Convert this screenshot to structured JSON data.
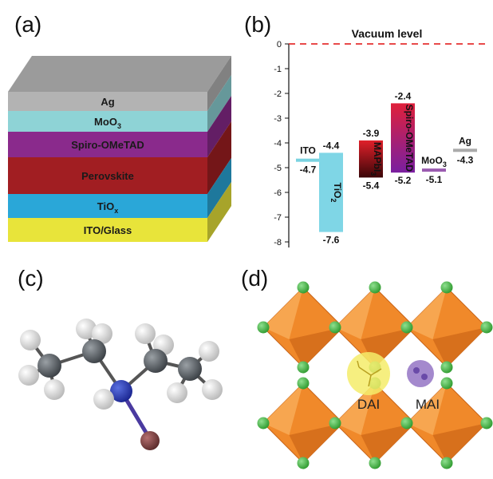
{
  "panels": {
    "a": "(a)",
    "b": "(b)",
    "c": "(c)",
    "d": "(d)"
  },
  "stack": {
    "layers": [
      {
        "name": "Ag",
        "sub": "",
        "color": "#b3b3b3"
      },
      {
        "name": "MoO",
        "sub": "3",
        "color": "#8ed3d6"
      },
      {
        "name": "Spiro-OMeTAD",
        "sub": "",
        "color": "#8a2a8c"
      },
      {
        "name": "Perovskite",
        "sub": "",
        "color": "#a11e22"
      },
      {
        "name": "TiO",
        "sub": "x",
        "color": "#2aa7d8"
      },
      {
        "name": "ITO/Glass",
        "sub": "",
        "color": "#e8e43a"
      }
    ]
  },
  "chart_data": {
    "type": "bar",
    "title": "Vacuum level",
    "ylim": [
      -8.3,
      0.3
    ],
    "yticks": [
      0,
      -1,
      -2,
      -3,
      -4,
      -5,
      -6,
      -7,
      -8
    ],
    "vacuum_level": 0,
    "levels": [
      {
        "name": "ITO",
        "sub": "",
        "label_orientation": "horizontal",
        "value": -4.7,
        "value_label": "-4.7",
        "color": "#7ad3e0"
      },
      {
        "name": "TiO",
        "sub": "2",
        "label_orientation": "vertical",
        "top": -4.4,
        "bottom": -7.6,
        "top_label": "-4.4",
        "bottom_label": "-7.6",
        "color": "#7fd6e6"
      },
      {
        "name": "MAPbI",
        "sub": "3",
        "label_orientation": "vertical",
        "top": -3.9,
        "bottom": -5.4,
        "top_label": "-3.9",
        "bottom_label": "-5.4",
        "color_top": "#e0202a",
        "color_bottom": "#3a0608"
      },
      {
        "name": "Spiro-OMeTAD",
        "sub": "",
        "label_orientation": "vertical",
        "top": -2.4,
        "bottom": -5.2,
        "top_label": "-2.4",
        "bottom_label": "-5.2",
        "color_top": "#e0203a",
        "color_bottom": "#7a1fa0"
      },
      {
        "name": "MoO",
        "sub": "3",
        "label_orientation": "horizontal",
        "value": -5.1,
        "value_label": "-5.1",
        "color": "#9a5bb0"
      },
      {
        "name": "Ag",
        "sub": "",
        "label_orientation": "horizontal",
        "value": -4.3,
        "value_label": "-4.3",
        "color": "#aaaaaa"
      }
    ]
  },
  "molecules": {
    "dai": "DAI",
    "mai": "MAI"
  },
  "colors": {
    "octahedron": "#f0892a",
    "halide": "#4cbf4c",
    "carbon": "#555b60",
    "hydrogen": "#e6e6e6",
    "nitrogen": "#2a3fb0",
    "iodide": "#8a4a4a"
  }
}
